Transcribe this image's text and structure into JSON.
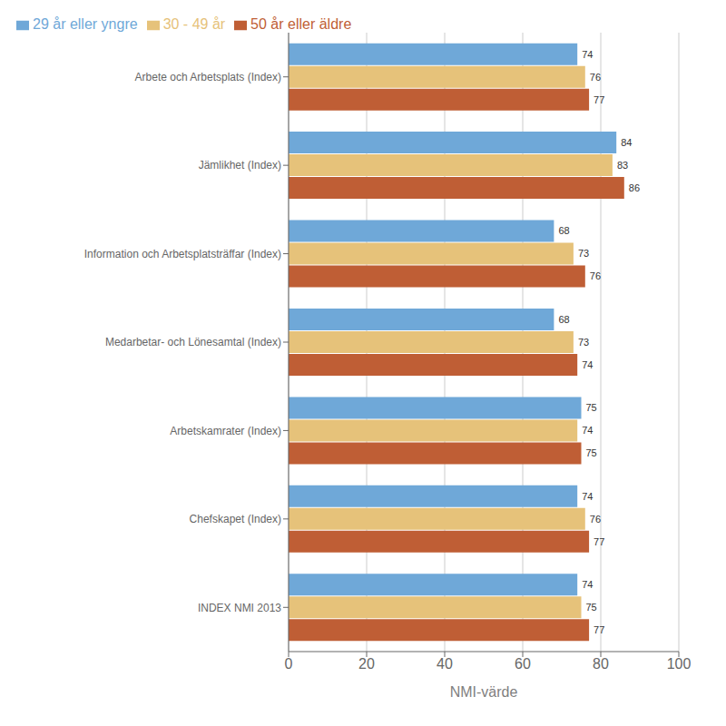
{
  "chart_data": {
    "type": "bar",
    "orientation": "horizontal",
    "categories": [
      "Arbete och Arbetsplats (Index)",
      "Jämlikhet (Index)",
      "Information och Arbetsplatsträffar (Index)",
      "Medarbetar- och Lönesamtal (Index)",
      "Arbetskamrater (Index)",
      "Chefskapet  (Index)",
      "INDEX NMI 2013"
    ],
    "series": [
      {
        "name": "29 år eller yngre",
        "color": "#6fa8d8",
        "values": [
          74,
          84,
          68,
          68,
          75,
          74,
          74
        ]
      },
      {
        "name": "30 - 49 år",
        "color": "#e6c27a",
        "values": [
          76,
          83,
          73,
          73,
          74,
          76,
          75
        ]
      },
      {
        "name": "50 år eller äldre",
        "color": "#bf5e35",
        "values": [
          77,
          86,
          76,
          74,
          75,
          77,
          77
        ]
      }
    ],
    "xlabel": "NMI-värde",
    "xlim": [
      0,
      100
    ],
    "xticks": [
      0,
      20,
      40,
      60,
      80,
      100
    ],
    "grid": true,
    "legend": "upper left",
    "data_labels": true
  }
}
